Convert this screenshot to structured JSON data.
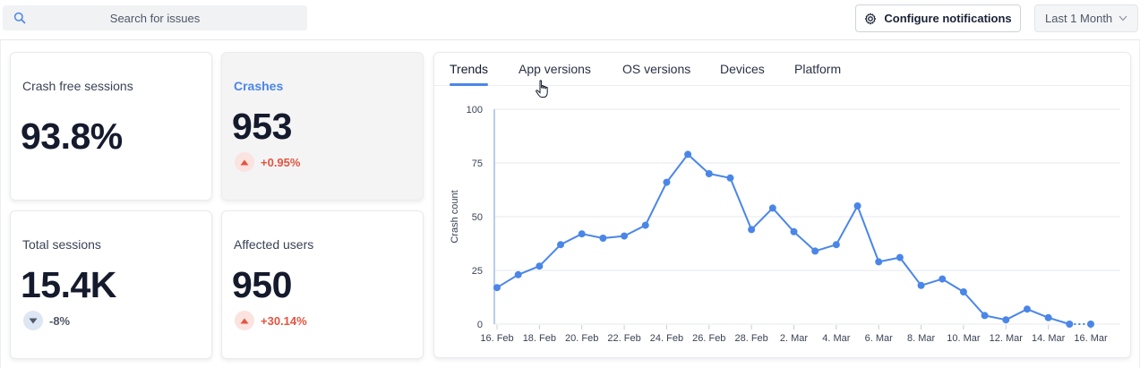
{
  "search": {
    "placeholder": "Search for issues",
    "icon": "search-icon"
  },
  "header": {
    "configure_label": "Configure notifications",
    "configure_icon": "gear-icon",
    "range_label": "Last 1 Month",
    "range_icon": "chevron-down-icon"
  },
  "metrics": {
    "crash_free": {
      "label": "Crash free sessions",
      "value": "93.8%"
    },
    "crashes": {
      "label": "Crashes",
      "value": "953",
      "delta": "+0.95%",
      "direction": "up"
    },
    "total_sessions": {
      "label": "Total sessions",
      "value": "15.4K",
      "delta": "-8%",
      "direction": "down"
    },
    "affected_users": {
      "label": "Affected users",
      "value": "950",
      "delta": "+30.14%",
      "direction": "up"
    }
  },
  "tabs": [
    "Trends",
    "App versions",
    "OS versions",
    "Devices",
    "Platform"
  ],
  "active_tab": "Trends",
  "colors": {
    "accent": "#4a86e8",
    "up": "#e5533f",
    "down": "#4f5668"
  },
  "chart_data": {
    "type": "line",
    "title": "",
    "xlabel": "",
    "ylabel": "Crash count",
    "ylim": [
      0,
      100
    ],
    "yticks": [
      0,
      25,
      50,
      75,
      100
    ],
    "xticks": [
      "16. Feb",
      "18. Feb",
      "20. Feb",
      "22. Feb",
      "24. Feb",
      "26. Feb",
      "28. Feb",
      "2. Mar",
      "4. Mar",
      "6. Mar",
      "8. Mar",
      "10. Mar",
      "12. Mar",
      "14. Mar",
      "16. Mar"
    ],
    "x": [
      "16. Feb",
      "17. Feb",
      "18. Feb",
      "19. Feb",
      "20. Feb",
      "21. Feb",
      "22. Feb",
      "23. Feb",
      "24. Feb",
      "25. Feb",
      "26. Feb",
      "27. Feb",
      "28. Feb",
      "1. Mar",
      "2. Mar",
      "3. Mar",
      "4. Mar",
      "5. Mar",
      "6. Mar",
      "7. Mar",
      "8. Mar",
      "9. Mar",
      "10. Mar",
      "11. Mar",
      "12. Mar",
      "13. Mar",
      "14. Mar",
      "15. Mar",
      "16. Mar"
    ],
    "series": [
      {
        "values": [
          17,
          23,
          27,
          37,
          42,
          40,
          41,
          46,
          66,
          79,
          70,
          68,
          44,
          54,
          43,
          34,
          37,
          55,
          29,
          31,
          18,
          21,
          15,
          4,
          2,
          7,
          3,
          0,
          0
        ]
      }
    ],
    "grid": true,
    "legend": "none"
  }
}
